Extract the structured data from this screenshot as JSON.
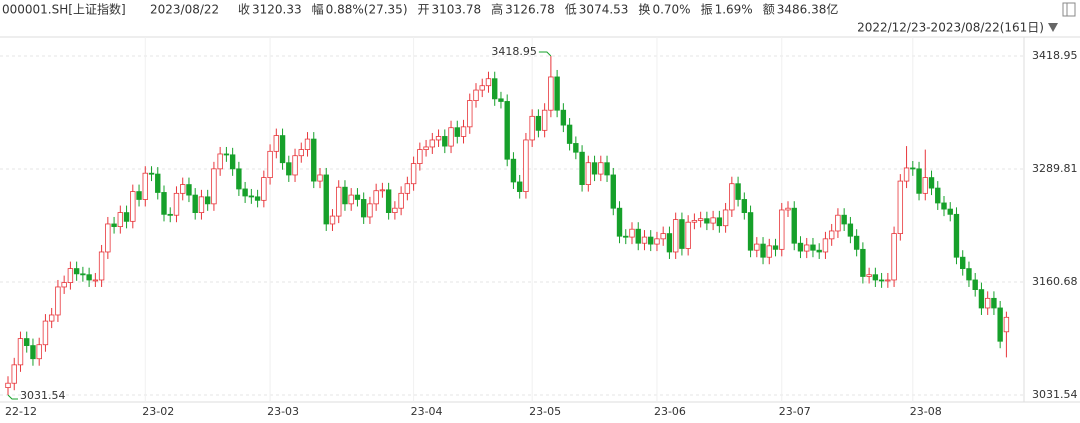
{
  "quote": {
    "code": "000001.SH[上证指数]",
    "date": "2023/08/22",
    "items": [
      {
        "label": "收",
        "value": "3120.33",
        "tone": "up"
      },
      {
        "label": "幅",
        "value": "0.88%(27.35)",
        "tone": "up"
      },
      {
        "label": "开",
        "value": "3103.78",
        "tone": "up"
      },
      {
        "label": "高",
        "value": "3126.78",
        "tone": "up"
      },
      {
        "label": "低",
        "value": "3074.53",
        "tone": "down"
      },
      {
        "label": "换",
        "value": "0.70%",
        "tone": "flat"
      },
      {
        "label": "振",
        "value": "1.69%",
        "tone": "flat"
      },
      {
        "label": "额",
        "value": "3486.38亿",
        "tone": "flat"
      }
    ],
    "range": "2022/12/23-2023/08/22(161日)"
  },
  "chart_data": {
    "type": "candlestick",
    "up_color": "#e8363b",
    "down_color": "#16a02a",
    "grid": true,
    "ylim": [
      3031.54,
      3418.95
    ],
    "yticks": [
      3031.54,
      3160.68,
      3289.81,
      3418.95
    ],
    "categories": [
      "22-12",
      null,
      null,
      null,
      null,
      null,
      null,
      null,
      null,
      null,
      null,
      null,
      null,
      null,
      null,
      null,
      null,
      null,
      null,
      null,
      null,
      null,
      "23-02",
      null,
      null,
      null,
      null,
      null,
      null,
      null,
      null,
      null,
      null,
      null,
      null,
      null,
      null,
      null,
      null,
      null,
      null,
      null,
      "23-03",
      null,
      null,
      null,
      null,
      null,
      null,
      null,
      null,
      null,
      null,
      null,
      null,
      null,
      null,
      null,
      null,
      null,
      null,
      null,
      null,
      null,
      null,
      "23-04",
      null,
      null,
      null,
      null,
      null,
      null,
      null,
      null,
      null,
      null,
      null,
      null,
      null,
      null,
      null,
      null,
      null,
      null,
      "23-05",
      null,
      null,
      null,
      null,
      null,
      null,
      null,
      null,
      null,
      null,
      null,
      null,
      null,
      null,
      null,
      null,
      null,
      null,
      null,
      "23-06",
      null,
      null,
      null,
      null,
      null,
      null,
      null,
      null,
      null,
      null,
      null,
      null,
      null,
      null,
      null,
      null,
      null,
      null,
      null,
      "23-07",
      null,
      null,
      null,
      null,
      null,
      null,
      null,
      null,
      null,
      null,
      null,
      null,
      null,
      null,
      null,
      null,
      null,
      null,
      null,
      null,
      "23-08",
      null,
      null,
      null,
      null,
      null,
      null,
      null,
      null,
      null,
      null,
      null,
      null,
      null,
      null,
      null
    ],
    "ohlc": [
      [
        3040,
        3053,
        3031.54,
        3045
      ],
      [
        3045,
        3074,
        3037,
        3066
      ],
      [
        3066,
        3104,
        3058,
        3096
      ],
      [
        3096,
        3104,
        3080,
        3088
      ],
      [
        3088,
        3096,
        3065,
        3073
      ],
      [
        3073,
        3097,
        3065,
        3089
      ],
      [
        3089,
        3124,
        3081,
        3116
      ],
      [
        3116,
        3131,
        3108,
        3123
      ],
      [
        3123,
        3163,
        3115,
        3155
      ],
      [
        3155,
        3168,
        3147,
        3160
      ],
      [
        3160,
        3184,
        3152,
        3176
      ],
      [
        3176,
        3184,
        3162,
        3170
      ],
      [
        3170,
        3178,
        3161,
        3169
      ],
      [
        3169,
        3177,
        3155,
        3163
      ],
      [
        3163,
        3171,
        3155,
        3163
      ],
      [
        3163,
        3203,
        3155,
        3195
      ],
      [
        3195,
        3235,
        3187,
        3227
      ],
      [
        3227,
        3235,
        3216,
        3224
      ],
      [
        3224,
        3248,
        3216,
        3240
      ],
      [
        3240,
        3248,
        3222,
        3230
      ],
      [
        3230,
        3272,
        3222,
        3264
      ],
      [
        3264,
        3272,
        3247,
        3255
      ],
      [
        3255,
        3293,
        3247,
        3285
      ],
      [
        3285,
        3293,
        3276,
        3284
      ],
      [
        3284,
        3292,
        3255,
        3263
      ],
      [
        3263,
        3271,
        3230,
        3238
      ],
      [
        3238,
        3246,
        3229,
        3237
      ],
      [
        3237,
        3270,
        3229,
        3262
      ],
      [
        3262,
        3280,
        3254,
        3272
      ],
      [
        3272,
        3280,
        3252,
        3260
      ],
      [
        3260,
        3268,
        3232,
        3240
      ],
      [
        3240,
        3266,
        3232,
        3258
      ],
      [
        3258,
        3266,
        3242,
        3250
      ],
      [
        3250,
        3298,
        3242,
        3290
      ],
      [
        3290,
        3315,
        3282,
        3307
      ],
      [
        3307,
        3315,
        3298,
        3306
      ],
      [
        3306,
        3314,
        3282,
        3290
      ],
      [
        3290,
        3298,
        3259,
        3267
      ],
      [
        3267,
        3275,
        3251,
        3259
      ],
      [
        3259,
        3267,
        3250,
        3258
      ],
      [
        3258,
        3266,
        3246,
        3254
      ],
      [
        3254,
        3288,
        3246,
        3280
      ],
      [
        3280,
        3318,
        3272,
        3310
      ],
      [
        3310,
        3336,
        3302,
        3328
      ],
      [
        3328,
        3336,
        3289,
        3297
      ],
      [
        3297,
        3305,
        3275,
        3283
      ],
      [
        3283,
        3313,
        3275,
        3305
      ],
      [
        3305,
        3320,
        3297,
        3312
      ],
      [
        3312,
        3332,
        3304,
        3324
      ],
      [
        3324,
        3332,
        3268,
        3276
      ],
      [
        3276,
        3291,
        3268,
        3283
      ],
      [
        3283,
        3291,
        3219,
        3227
      ],
      [
        3227,
        3244,
        3219,
        3236
      ],
      [
        3236,
        3277,
        3228,
        3269
      ],
      [
        3269,
        3277,
        3242,
        3250
      ],
      [
        3250,
        3268,
        3242,
        3260
      ],
      [
        3260,
        3268,
        3247,
        3255
      ],
      [
        3255,
        3263,
        3227,
        3235
      ],
      [
        3235,
        3258,
        3227,
        3250
      ],
      [
        3250,
        3273,
        3242,
        3265
      ],
      [
        3265,
        3274,
        3257,
        3266
      ],
      [
        3266,
        3274,
        3232,
        3240
      ],
      [
        3240,
        3253,
        3232,
        3245
      ],
      [
        3245,
        3270,
        3237,
        3262
      ],
      [
        3262,
        3281,
        3254,
        3273
      ],
      [
        3273,
        3304,
        3265,
        3296
      ],
      [
        3296,
        3320,
        3288,
        3312
      ],
      [
        3312,
        3323,
        3304,
        3315
      ],
      [
        3315,
        3331,
        3307,
        3323
      ],
      [
        3323,
        3335,
        3315,
        3327
      ],
      [
        3327,
        3335,
        3308,
        3316
      ],
      [
        3316,
        3345,
        3308,
        3337
      ],
      [
        3337,
        3345,
        3319,
        3327
      ],
      [
        3327,
        3346,
        3319,
        3338
      ],
      [
        3338,
        3376,
        3330,
        3368
      ],
      [
        3368,
        3388,
        3360,
        3380
      ],
      [
        3380,
        3393,
        3372,
        3385
      ],
      [
        3385,
        3401,
        3377,
        3393
      ],
      [
        3393,
        3401,
        3362,
        3370
      ],
      [
        3370,
        3378,
        3359,
        3367
      ],
      [
        3367,
        3375,
        3293,
        3301
      ],
      [
        3301,
        3309,
        3267,
        3275
      ],
      [
        3275,
        3283,
        3256,
        3264
      ],
      [
        3264,
        3331,
        3256,
        3323
      ],
      [
        3323,
        3358,
        3315,
        3350
      ],
      [
        3350,
        3358,
        3326,
        3334
      ],
      [
        3334,
        3365,
        3326,
        3357
      ],
      [
        3357,
        3418.95,
        3349,
        3395
      ],
      [
        3395,
        3403,
        3349,
        3357
      ],
      [
        3357,
        3365,
        3332,
        3340
      ],
      [
        3340,
        3348,
        3311,
        3319
      ],
      [
        3319,
        3327,
        3301,
        3309
      ],
      [
        3309,
        3317,
        3264,
        3272
      ],
      [
        3272,
        3305,
        3264,
        3297
      ],
      [
        3297,
        3305,
        3276,
        3284
      ],
      [
        3284,
        3305,
        3276,
        3297
      ],
      [
        3297,
        3305,
        3275,
        3283
      ],
      [
        3283,
        3291,
        3237,
        3245
      ],
      [
        3245,
        3253,
        3205,
        3213
      ],
      [
        3213,
        3221,
        3204,
        3212
      ],
      [
        3212,
        3229,
        3204,
        3221
      ],
      [
        3221,
        3229,
        3197,
        3205
      ],
      [
        3205,
        3220,
        3197,
        3212
      ],
      [
        3212,
        3220,
        3196,
        3204
      ],
      [
        3204,
        3218,
        3196,
        3210
      ],
      [
        3210,
        3224,
        3202,
        3216
      ],
      [
        3216,
        3224,
        3187,
        3195
      ],
      [
        3195,
        3240,
        3187,
        3232
      ],
      [
        3232,
        3240,
        3191,
        3199
      ],
      [
        3199,
        3237,
        3191,
        3229
      ],
      [
        3229,
        3239,
        3221,
        3231
      ],
      [
        3231,
        3241,
        3223,
        3233
      ],
      [
        3233,
        3241,
        3220,
        3228
      ],
      [
        3228,
        3242,
        3220,
        3234
      ],
      [
        3234,
        3242,
        3217,
        3225
      ],
      [
        3225,
        3251,
        3217,
        3243
      ],
      [
        3243,
        3281,
        3235,
        3273
      ],
      [
        3273,
        3281,
        3247,
        3255
      ],
      [
        3255,
        3263,
        3232,
        3240
      ],
      [
        3240,
        3248,
        3189,
        3197
      ],
      [
        3197,
        3212,
        3189,
        3204
      ],
      [
        3204,
        3212,
        3181,
        3189
      ],
      [
        3189,
        3210,
        3181,
        3202
      ],
      [
        3202,
        3210,
        3190,
        3198
      ],
      [
        3198,
        3251,
        3190,
        3243
      ],
      [
        3243,
        3253,
        3235,
        3245
      ],
      [
        3245,
        3253,
        3197,
        3205
      ],
      [
        3205,
        3213,
        3188,
        3196
      ],
      [
        3196,
        3211,
        3188,
        3203
      ],
      [
        3203,
        3211,
        3189,
        3197
      ],
      [
        3197,
        3205,
        3187,
        3195
      ],
      [
        3195,
        3218,
        3187,
        3210
      ],
      [
        3210,
        3227,
        3202,
        3219
      ],
      [
        3219,
        3245,
        3211,
        3237
      ],
      [
        3237,
        3245,
        3219,
        3227
      ],
      [
        3227,
        3235,
        3205,
        3213
      ],
      [
        3213,
        3221,
        3190,
        3198
      ],
      [
        3198,
        3206,
        3159,
        3167
      ],
      [
        3167,
        3177,
        3159,
        3169
      ],
      [
        3169,
        3177,
        3155,
        3163
      ],
      [
        3163,
        3171,
        3154,
        3162
      ],
      [
        3162,
        3171,
        3154,
        3163
      ],
      [
        3163,
        3224,
        3155,
        3216
      ],
      [
        3216,
        3284,
        3208,
        3276
      ],
      [
        3276,
        3316,
        3268,
        3291
      ],
      [
        3291,
        3299,
        3282,
        3290
      ],
      [
        3290,
        3298,
        3254,
        3262
      ],
      [
        3262,
        3312,
        3254,
        3280
      ],
      [
        3280,
        3288,
        3260,
        3268
      ],
      [
        3268,
        3276,
        3243,
        3251
      ],
      [
        3251,
        3259,
        3236,
        3244
      ],
      [
        3244,
        3252,
        3230,
        3238
      ],
      [
        3238,
        3246,
        3181,
        3189
      ],
      [
        3189,
        3197,
        3168,
        3176
      ],
      [
        3176,
        3184,
        3155,
        3163
      ],
      [
        3163,
        3171,
        3144,
        3152
      ],
      [
        3152,
        3160,
        3123,
        3131
      ],
      [
        3131,
        3150,
        3123,
        3142
      ],
      [
        3142,
        3150,
        3123,
        3131
      ],
      [
        3131,
        3139,
        3085,
        3092.98
      ],
      [
        3103.78,
        3126.78,
        3074.53,
        3120.33
      ]
    ],
    "max_index": 87,
    "min_index": 0
  }
}
